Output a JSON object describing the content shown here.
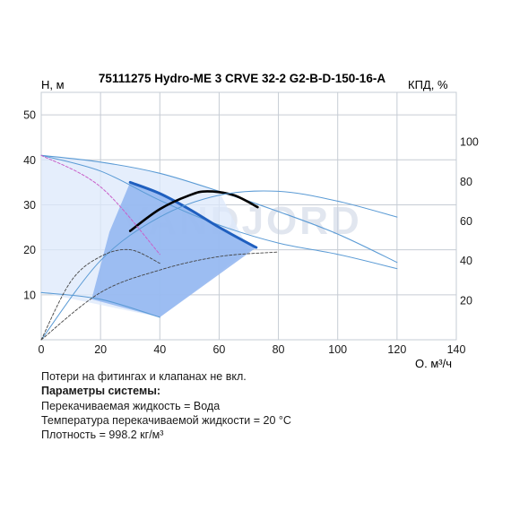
{
  "chart_data": {
    "type": "line",
    "title": "75111275 Hydro-ME 3 CRVE 32-2 G2-B-D-150-16-A",
    "ylabel_left": "H, м",
    "ylabel_right": "КПД, %",
    "xlabel": "Q, м³/ч",
    "watermark": "VANDJORD",
    "xlim": [
      0,
      140
    ],
    "ylim_left": [
      0,
      55
    ],
    "ylim_right": [
      0,
      125
    ],
    "xticks": [
      "0",
      "20",
      "40",
      "60",
      "80",
      "100",
      "120",
      "140"
    ],
    "yticks_left": [
      "10",
      "20",
      "30",
      "40",
      "50"
    ],
    "yticks_right": [
      "20",
      "40",
      "60",
      "80",
      "100"
    ],
    "grid": true,
    "colors": {
      "grid": "#c6ccd4",
      "curve_thin": "#5b9bd5",
      "curve_bold": "#1f5fbf",
      "efficiency_bold": "#000000",
      "area_fill": "#8fb4f0",
      "area_light": "#dce8fb",
      "magenta": "#c95fc9",
      "watermark": "#c9d3e3"
    },
    "series": [
      {
        "style": "head-max-thin",
        "x": [
          0,
          20,
          40,
          60,
          80,
          100,
          120
        ],
        "y": [
          41,
          39.5,
          37,
          33,
          28.5,
          23.5,
          17.2
        ]
      },
      {
        "style": "head-min-thin",
        "x": [
          0,
          20,
          40
        ],
        "y": [
          10.5,
          9,
          5
        ]
      },
      {
        "style": "head-thin-2",
        "x": [
          0,
          20,
          40,
          60,
          80,
          100,
          120
        ],
        "y": [
          41,
          37.5,
          31,
          25.5,
          21.5,
          19,
          15.8
        ]
      },
      {
        "style": "head-bold",
        "x": [
          30,
          40,
          50,
          60,
          72.5
        ],
        "y": [
          35,
          32.5,
          29,
          25,
          20.5
        ]
      },
      {
        "style": "efficiency-bold",
        "x": [
          30,
          40,
          50,
          56,
          65,
          73
        ],
        "y": [
          55,
          66,
          73,
          75,
          73,
          67
        ]
      },
      {
        "style": "efficiency-thin",
        "x": [
          0,
          20,
          40,
          60,
          80,
          100,
          120
        ],
        "y": [
          0,
          40,
          62,
          73,
          75,
          70,
          62
        ]
      },
      {
        "style": "npsh-dashed",
        "x": [
          0,
          10,
          20,
          30,
          40
        ],
        "y": [
          0,
          13,
          18.5,
          20,
          17
        ]
      },
      {
        "style": "power-dashed",
        "x": [
          0,
          20,
          40,
          60,
          80
        ],
        "y": [
          0,
          10.5,
          15.5,
          18.5,
          19.5
        ]
      },
      {
        "style": "magenta-dashed",
        "x": [
          0,
          20,
          40
        ],
        "y": [
          41,
          34,
          19
        ]
      }
    ]
  },
  "notes": {
    "line1": "Потери на фитингах и клапанах не вкл.",
    "line2": "Параметры системы:",
    "line3": "Перекачиваемая жидкость = Вода",
    "line4": "Температура перекачиваемой жидкости = 20 °C",
    "line5": "Плотность = 998.2 кг/м³"
  }
}
